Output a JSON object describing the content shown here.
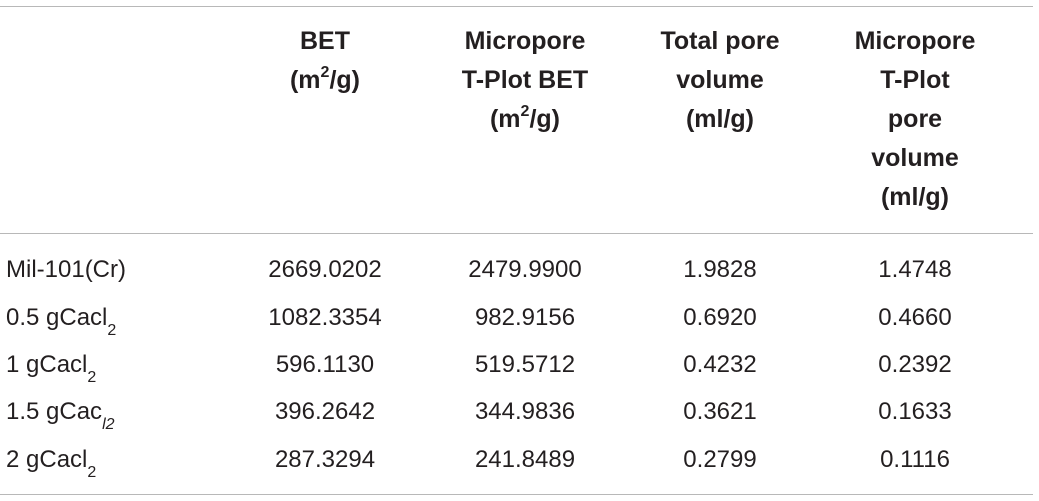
{
  "table": {
    "headers": [
      {
        "lines": [
          "BET",
          "(m",
          "2",
          "/g)"
        ]
      },
      {
        "lines": [
          "Micropore",
          "T-Plot BET",
          "(m",
          "2",
          "/g)"
        ]
      },
      {
        "lines": [
          "Total pore",
          "volume",
          "(ml/g)"
        ]
      },
      {
        "lines": [
          "Micropore",
          "T-Plot",
          "pore",
          "volume",
          "(ml/g)"
        ]
      }
    ],
    "rows": [
      {
        "label": "Mil-101(Cr)",
        "label_sub": "",
        "bet": "2669.0202",
        "tplot_bet": "2479.9900",
        "total_pore": "1.9828",
        "micro_pore": "1.4748"
      },
      {
        "label": "0.5 gCacl",
        "label_sub": "2",
        "bet": "1082.3354",
        "tplot_bet": "982.9156",
        "total_pore": "0.6920",
        "micro_pore": "0.4660"
      },
      {
        "label": "1 gCacl",
        "label_sub": "2",
        "bet": "596.1130",
        "tplot_bet": "519.5712",
        "total_pore": "0.4232",
        "micro_pore": "0.2392"
      },
      {
        "label": "1.5 gCac",
        "label_sub": "l2",
        "bet": "396.2642",
        "tplot_bet": "344.9836",
        "total_pore": "0.3621",
        "micro_pore": "0.1633"
      },
      {
        "label": "2 gCacl",
        "label_sub": "2",
        "bet": "287.3294",
        "tplot_bet": "241.8489",
        "total_pore": "0.2799",
        "micro_pore": "0.1116"
      }
    ]
  }
}
